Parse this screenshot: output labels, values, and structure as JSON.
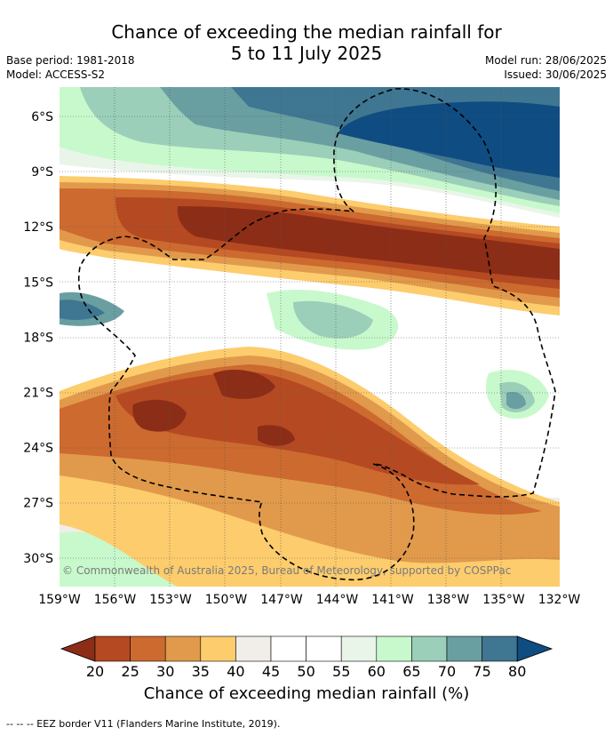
{
  "title_line1": "Chance of exceeding the median rainfall for",
  "title_line2": "5 to 11 July 2025",
  "base_period": "Base period: 1981-2018",
  "model": "Model: ACCESS-S2",
  "model_run": "Model run: 28/06/2025",
  "issued": "Issued: 30/06/2025",
  "copyright": "© Commonwealth of Australia 2025, Bureau of Meteorology, supported by COSPPac",
  "lat_labels": [
    "6°S",
    "9°S",
    "12°S",
    "15°S",
    "18°S",
    "21°S",
    "24°S",
    "27°S",
    "30°S"
  ],
  "lon_labels": [
    "159°W",
    "156°W",
    "153°W",
    "150°W",
    "147°W",
    "144°W",
    "141°W",
    "138°W",
    "135°W",
    "132°W"
  ],
  "colorbar": {
    "title": "Chance of exceeding median rainfall (%)",
    "ticks": [
      "20",
      "25",
      "30",
      "35",
      "40",
      "45",
      "50",
      "55",
      "60",
      "65",
      "70",
      "75",
      "80"
    ],
    "colors": [
      "#8c2d17",
      "#b54a22",
      "#cd6a2f",
      "#e19a4b",
      "#fdcc6d",
      "#f1ede8",
      "#ffffff",
      "#ffffff",
      "#eaf5ea",
      "#c8f9cc",
      "#9bcfb9",
      "#6a9fa2",
      "#3f7691",
      "#0f4c81"
    ]
  },
  "legend_note": "--  --  -- EEZ border V11 (Flanders Marine Institute, 2019)."
}
